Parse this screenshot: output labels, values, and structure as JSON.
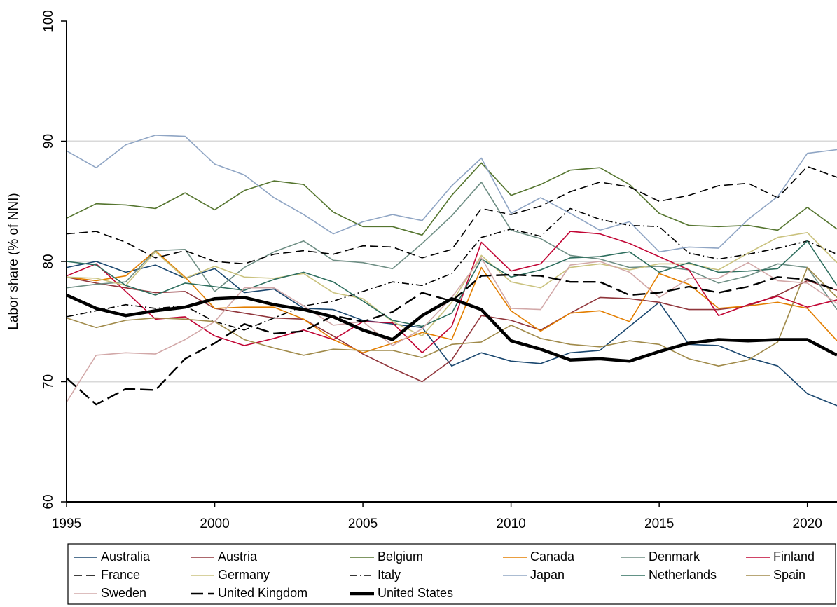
{
  "chart_data": {
    "type": "line",
    "y_label": "Labor share (% of NNI)",
    "x": [
      1995,
      1996,
      1997,
      1998,
      1999,
      2000,
      2001,
      2002,
      2003,
      2004,
      2005,
      2006,
      2007,
      2008,
      2009,
      2010,
      2011,
      2012,
      2013,
      2014,
      2015,
      2016,
      2017,
      2018,
      2019,
      2020,
      2021
    ],
    "xlim": [
      1995,
      2021
    ],
    "xticks": [
      1995,
      2000,
      2005,
      2010,
      2015,
      2020
    ],
    "ylim": [
      60,
      100
    ],
    "yticks": [
      60,
      70,
      80,
      90,
      100
    ],
    "grid": true,
    "legend": "bottom",
    "series": [
      {
        "name": "Australia",
        "color": "#1a476f",
        "line_style": "solid",
        "line_width": 1.6,
        "values": [
          79.5,
          80.0,
          79.1,
          79.7,
          78.6,
          79.4,
          77.4,
          77.7,
          76.1,
          76.0,
          75.1,
          74.8,
          74.5,
          71.3,
          72.4,
          71.7,
          71.5,
          72.4,
          72.6,
          74.6,
          76.6,
          73.1,
          73.0,
          72.0,
          71.3,
          69.0,
          68.0
        ]
      },
      {
        "name": "Austria",
        "color": "#90353b",
        "line_style": "solid",
        "line_width": 1.6,
        "values": [
          78.7,
          78.2,
          77.8,
          77.4,
          77.5,
          76.1,
          75.7,
          75.3,
          75.2,
          73.8,
          72.3,
          71.1,
          70.0,
          71.8,
          75.5,
          75.1,
          74.3,
          75.7,
          77.0,
          76.9,
          76.6,
          76.0,
          76.0,
          76.3,
          77.2,
          78.4,
          77.6
        ]
      },
      {
        "name": "Belgium",
        "color": "#55752f",
        "line_style": "solid",
        "line_width": 1.6,
        "values": [
          83.6,
          84.8,
          84.7,
          84.4,
          85.7,
          84.3,
          85.9,
          86.7,
          86.4,
          84.1,
          82.9,
          82.9,
          82.2,
          85.5,
          88.2,
          85.5,
          86.4,
          87.6,
          87.8,
          86.4,
          84.0,
          83.0,
          82.9,
          83.0,
          82.6,
          84.5,
          82.7
        ]
      },
      {
        "name": "Canada",
        "color": "#e37e00",
        "line_style": "solid",
        "line_width": 1.6,
        "values": [
          78.7,
          78.4,
          78.8,
          80.9,
          78.7,
          76.1,
          76.2,
          76.2,
          75.2,
          73.5,
          72.4,
          73.2,
          74.1,
          73.5,
          79.5,
          75.9,
          74.2,
          75.7,
          75.9,
          75.0,
          79.0,
          78.1,
          76.1,
          76.3,
          76.6,
          76.1,
          73.4
        ]
      },
      {
        "name": "Denmark",
        "color": "#6e8e84",
        "line_style": "solid",
        "line_width": 1.6,
        "values": [
          77.8,
          78.1,
          78.3,
          80.9,
          81.0,
          77.5,
          79.5,
          80.8,
          81.7,
          80.1,
          79.9,
          79.4,
          81.5,
          83.8,
          86.6,
          82.6,
          81.9,
          80.5,
          80.2,
          79.5,
          79.6,
          79.3,
          78.2,
          78.8,
          79.8,
          79.5,
          76.0
        ]
      },
      {
        "name": "Finland",
        "color": "#c10534",
        "line_style": "solid",
        "line_width": 1.6,
        "values": [
          78.8,
          79.8,
          77.5,
          75.2,
          75.4,
          73.8,
          73.0,
          73.6,
          74.3,
          73.5,
          75.0,
          74.9,
          72.4,
          74.6,
          81.6,
          79.2,
          79.8,
          82.5,
          82.3,
          81.5,
          80.4,
          79.3,
          75.5,
          76.4,
          77.1,
          76.2,
          76.8
        ]
      },
      {
        "name": "France",
        "color": "#000000",
        "line_style": "dashed",
        "line_width": 1.6,
        "values": [
          82.3,
          82.5,
          81.6,
          80.3,
          80.9,
          80.0,
          79.8,
          80.6,
          80.9,
          80.6,
          81.3,
          81.2,
          80.3,
          81.0,
          84.4,
          83.9,
          84.6,
          85.8,
          86.6,
          86.2,
          85.0,
          85.5,
          86.3,
          86.5,
          85.3,
          87.9,
          87.0
        ]
      },
      {
        "name": "Germany",
        "color": "#cac27e",
        "line_style": "solid",
        "line_width": 1.6,
        "values": [
          78.7,
          78.6,
          78.0,
          80.8,
          78.6,
          79.6,
          78.7,
          78.6,
          79.0,
          77.4,
          76.9,
          75.0,
          73.8,
          76.6,
          80.5,
          78.3,
          77.8,
          79.5,
          79.8,
          79.3,
          79.8,
          79.8,
          79.3,
          80.7,
          82.0,
          82.4,
          79.9
        ]
      },
      {
        "name": "Italy",
        "color": "#000000",
        "line_style": "dash-dot",
        "line_width": 1.6,
        "values": [
          75.4,
          75.9,
          76.4,
          76.1,
          76.3,
          75.0,
          74.3,
          75.3,
          76.3,
          76.7,
          77.5,
          78.3,
          78.0,
          79.0,
          82.0,
          82.7,
          82.1,
          84.4,
          83.5,
          83.0,
          82.9,
          80.7,
          80.2,
          80.6,
          81.1,
          81.7,
          80.6
        ]
      },
      {
        "name": "Japan",
        "color": "#8fa5c4",
        "line_style": "solid",
        "line_width": 1.6,
        "values": [
          89.2,
          87.8,
          89.7,
          90.5,
          90.4,
          88.1,
          87.2,
          85.3,
          83.9,
          82.3,
          83.3,
          83.9,
          83.4,
          86.3,
          88.6,
          84.0,
          85.3,
          84.0,
          82.6,
          83.3,
          80.8,
          81.2,
          81.1,
          83.5,
          85.4,
          89.0,
          89.3
        ]
      },
      {
        "name": "Netherlands",
        "color": "#2e6e5e",
        "line_style": "solid",
        "line_width": 1.6,
        "values": [
          80.0,
          79.7,
          78.0,
          77.2,
          78.2,
          77.9,
          77.6,
          78.5,
          79.1,
          78.3,
          76.7,
          75.1,
          74.6,
          75.7,
          80.2,
          78.7,
          79.3,
          80.3,
          80.4,
          80.8,
          79.1,
          79.9,
          79.1,
          79.2,
          79.4,
          81.7,
          78.0
        ]
      },
      {
        "name": "Spain",
        "color": "#a08a4a",
        "line_style": "solid",
        "line_width": 1.6,
        "values": [
          75.3,
          74.5,
          75.1,
          75.3,
          75.2,
          75.0,
          73.5,
          72.8,
          72.2,
          72.7,
          72.6,
          72.6,
          72.0,
          73.1,
          73.3,
          74.7,
          73.6,
          73.1,
          72.9,
          73.4,
          73.1,
          71.9,
          71.3,
          71.8,
          73.3,
          79.5,
          77.0
        ]
      },
      {
        "name": "Sweden",
        "color": "#d2a8a8",
        "line_style": "solid",
        "line_width": 1.6,
        "values": [
          68.3,
          72.2,
          72.4,
          72.3,
          73.5,
          75.0,
          77.8,
          77.8,
          76.3,
          74.7,
          75.0,
          73.0,
          74.4,
          77.0,
          80.3,
          76.1,
          76.0,
          79.7,
          80.0,
          79.1,
          77.0,
          78.6,
          78.6,
          79.9,
          78.4,
          78.2,
          76.5
        ]
      },
      {
        "name": "United Kingdom",
        "color": "#000000",
        "line_style": "long-dash",
        "line_width": 2.4,
        "values": [
          70.3,
          68.1,
          69.4,
          69.3,
          71.9,
          73.2,
          74.8,
          74.0,
          74.2,
          75.5,
          75.0,
          75.8,
          77.4,
          76.7,
          78.8,
          78.9,
          78.8,
          78.3,
          78.3,
          77.2,
          77.4,
          77.9,
          77.4,
          77.9,
          78.7,
          78.5,
          77.6
        ]
      },
      {
        "name": "United States",
        "color": "#000000",
        "line_style": "solid",
        "line_width": 4.5,
        "values": [
          77.2,
          76.1,
          75.5,
          75.9,
          76.2,
          76.9,
          77.0,
          76.4,
          76.0,
          75.4,
          74.3,
          73.5,
          75.5,
          76.9,
          76.0,
          73.4,
          72.7,
          71.8,
          71.9,
          71.7,
          72.5,
          73.2,
          73.5,
          73.4,
          73.5,
          73.5,
          72.2
        ]
      }
    ]
  }
}
